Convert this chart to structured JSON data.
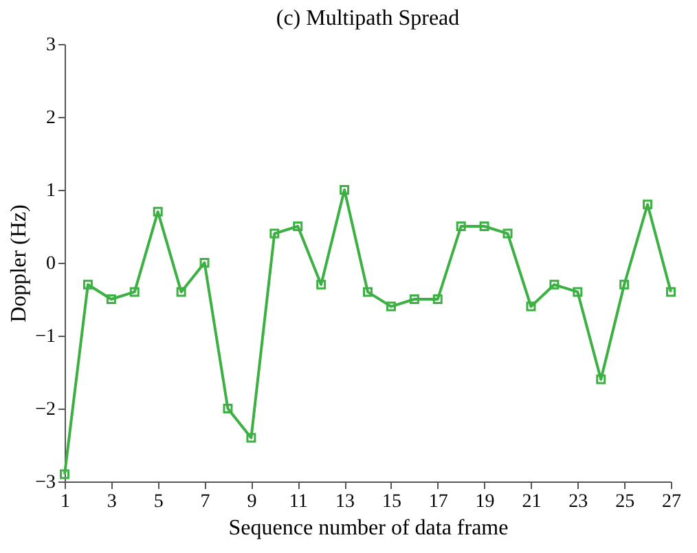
{
  "chart_data": {
    "type": "line",
    "title": "(c) Multipath Spread",
    "xlabel": "Sequence number of data frame",
    "ylabel": "Doppler (Hz)",
    "x": [
      1,
      2,
      3,
      4,
      5,
      6,
      7,
      8,
      9,
      10,
      11,
      12,
      13,
      14,
      15,
      16,
      17,
      18,
      19,
      20,
      21,
      22,
      23,
      24,
      25,
      26,
      27
    ],
    "series": [
      {
        "color": "#3cb043",
        "values": [
          -2.9,
          -0.3,
          -0.5,
          -0.4,
          0.7,
          -0.4,
          0,
          -2,
          -2.4,
          0.4,
          0.5,
          -0.3,
          1.0,
          -0.4,
          -0.6,
          -0.5,
          -0.5,
          0.5,
          0.5,
          0.4,
          -0.6,
          -0.3,
          -0.4,
          -1.6,
          -0.3,
          0.8,
          -0.4
        ]
      }
    ],
    "xlim": [
      1,
      27
    ],
    "xticks": [
      1,
      3,
      5,
      7,
      9,
      11,
      13,
      15,
      17,
      19,
      21,
      23,
      25,
      27
    ],
    "ylim": [
      -3,
      3
    ],
    "yticks": [
      -3,
      -2,
      -1,
      0,
      1,
      2,
      3
    ],
    "grid": false,
    "marker": "square",
    "line_style": "solid"
  }
}
